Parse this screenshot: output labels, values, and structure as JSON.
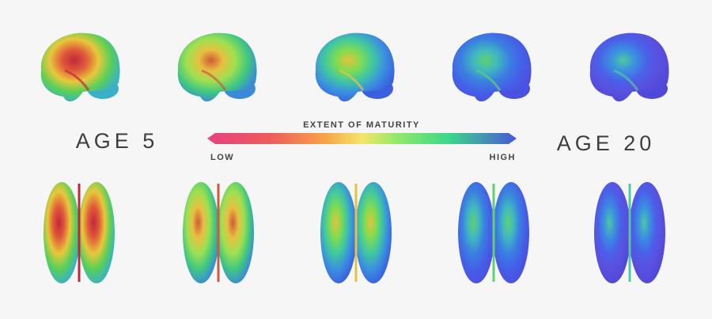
{
  "labels": {
    "start": "AGE 5",
    "end": "AGE 20"
  },
  "scale": {
    "title": "EXTENT OF MATURITY",
    "low": "LOW",
    "high": "HIGH"
  }
}
